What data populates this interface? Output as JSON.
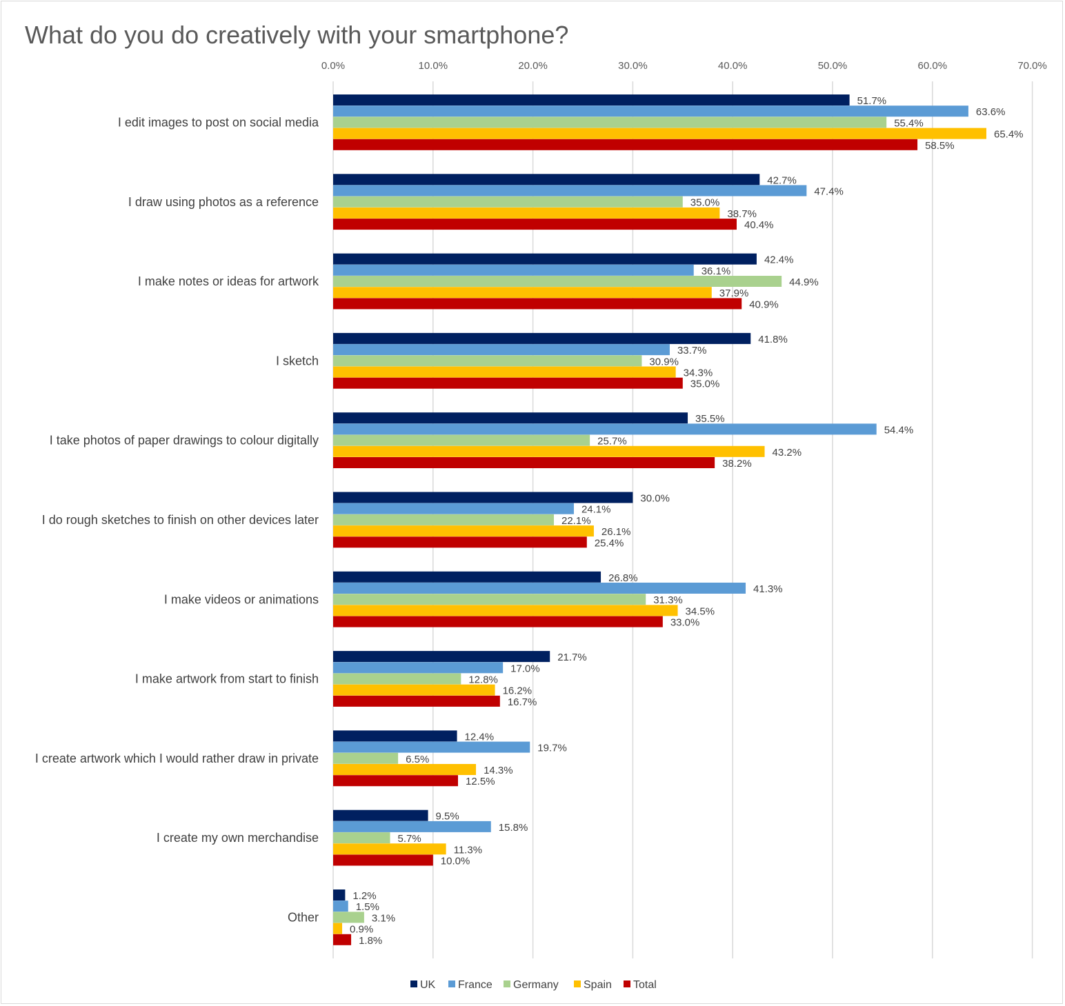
{
  "chart_data": {
    "type": "bar",
    "orientation": "horizontal",
    "title": "What do you do creatively with your smartphone?",
    "xlim": [
      0,
      70
    ],
    "x_ticks": [
      "0.0%",
      "10.0%",
      "20.0%",
      "30.0%",
      "40.0%",
      "50.0%",
      "60.0%",
      "70.0%"
    ],
    "grid": "vertical",
    "legend_position": "bottom",
    "categories": [
      "I edit images to post on social media",
      "I draw using photos as a reference",
      "I make notes or ideas for artwork",
      "I sketch",
      "I take photos of paper drawings to colour digitally",
      "I do rough sketches to finish on other devices later",
      "I make videos or animations",
      "I make artwork from start to finish",
      "I create artwork which I would rather draw in private",
      "I create my own merchandise",
      "Other"
    ],
    "series": [
      {
        "name": "UK",
        "color": "#002060",
        "values": [
          51.7,
          42.7,
          42.4,
          41.8,
          35.5,
          30.0,
          26.8,
          21.7,
          12.4,
          9.5,
          1.2
        ],
        "labels": [
          "51.7%",
          "42.7%",
          "42.4%",
          "41.8%",
          "35.5%",
          "30.0%",
          "26.8%",
          "21.7%",
          "12.4%",
          "9.5%",
          "1.2%"
        ]
      },
      {
        "name": "France",
        "color": "#5B9BD5",
        "values": [
          63.6,
          47.4,
          36.1,
          33.7,
          54.4,
          24.1,
          41.3,
          17.0,
          19.7,
          15.8,
          1.5
        ],
        "labels": [
          "63.6%",
          "47.4%",
          "36.1%",
          "33.7%",
          "54.4%",
          "24.1%",
          "41.3%",
          "17.0%",
          "19.7%",
          "15.8%",
          "1.5%"
        ]
      },
      {
        "name": "Germany",
        "color": "#A9D18E",
        "values": [
          55.4,
          35.0,
          44.9,
          30.9,
          25.7,
          22.1,
          31.3,
          12.8,
          6.5,
          5.7,
          3.1
        ],
        "labels": [
          "55.4%",
          "35.0%",
          "44.9%",
          "30.9%",
          "25.7%",
          "22.1%",
          "31.3%",
          "12.8%",
          "6.5%",
          "5.7%",
          "3.1%"
        ]
      },
      {
        "name": "Spain",
        "color": "#FFC000",
        "values": [
          65.4,
          38.7,
          37.9,
          34.3,
          43.2,
          26.1,
          34.5,
          16.2,
          14.3,
          11.3,
          0.9
        ],
        "labels": [
          "65.4%",
          "38.7%",
          "37.9%",
          "34.3%",
          "43.2%",
          "26.1%",
          "34.5%",
          "16.2%",
          "14.3%",
          "11.3%",
          "0.9%"
        ]
      },
      {
        "name": "Total",
        "color": "#C00000",
        "values": [
          58.5,
          40.4,
          40.9,
          35.0,
          38.2,
          25.4,
          33.0,
          16.7,
          12.5,
          10.0,
          1.8
        ],
        "labels": [
          "58.5%",
          "40.4%",
          "40.9%",
          "35.0%",
          "38.2%",
          "25.4%",
          "33.0%",
          "16.7%",
          "12.5%",
          "10.0%",
          "1.8%"
        ]
      }
    ]
  },
  "colors": {
    "gridline": "#d9d9d9",
    "tick_text": "#595959",
    "label_text": "#404040"
  }
}
